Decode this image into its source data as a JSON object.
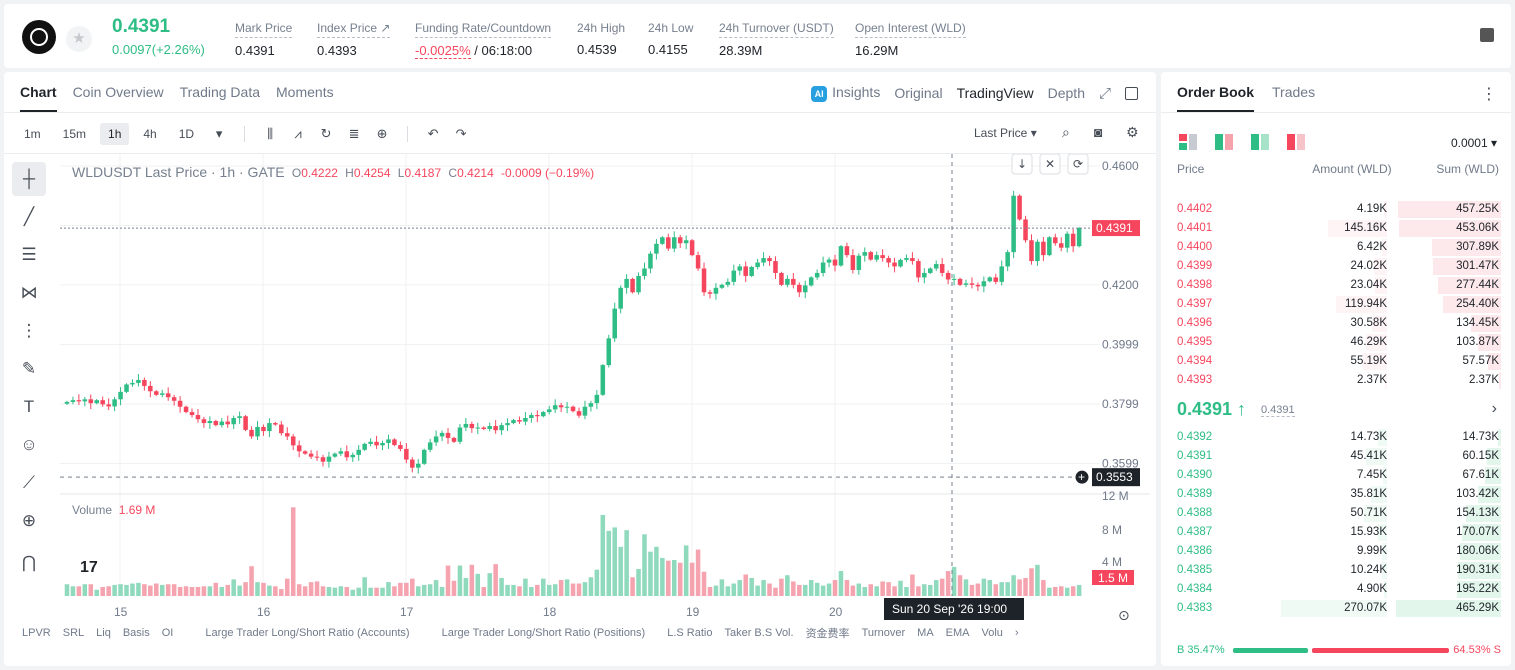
{
  "ticker": {
    "last_price": "0.4391",
    "change": "0.0097(+2.26%)",
    "stats": [
      {
        "label": "Mark Price",
        "value": "0.4391"
      },
      {
        "label": "Index Price ↗",
        "value": "0.4393"
      },
      {
        "label": "Funding Rate/Countdown",
        "value_red": "-0.0025%",
        "value": " / 06:18:00"
      },
      {
        "label": "24h High",
        "value": "0.4539"
      },
      {
        "label": "24h Low",
        "value": "0.4155"
      },
      {
        "label": "24h Turnover (USDT)",
        "value": "28.39M"
      },
      {
        "label": "Open Interest (WLD)",
        "value": "16.29M"
      }
    ]
  },
  "chart_tabs": [
    "Chart",
    "Coin Overview",
    "Trading Data",
    "Moments"
  ],
  "view_tabs": {
    "insights": "Insights",
    "ai_badge": "AI",
    "original": "Original",
    "tradingview": "TradingView",
    "depth": "Depth"
  },
  "intervals": [
    "1m",
    "15m",
    "1h",
    "4h",
    "1D"
  ],
  "active_interval": "1h",
  "price_type": "Last Price ▾",
  "legend": {
    "symbol": "WLDUSDT Last Price · 1h · GATE",
    "o": "O",
    "o_val": "0.4222",
    "h": "H",
    "h_val": "0.4254",
    "l": "L",
    "l_val": "0.4187",
    "c": "C",
    "c_val": "0.4214",
    "chg": "-0.0009 (−0.19%)"
  },
  "volume_legend": {
    "label": "Volume",
    "value": "1.69 M"
  },
  "bottom_indicators": [
    "LPVR",
    "SRL",
    "Liq",
    "Basis",
    "OI",
    "Large Trader Long/Short Ratio (Accounts)",
    "Large Trader Long/Short Ratio (Positions)",
    "L.S Ratio",
    "Taker B.S Vol.",
    "资金费率",
    "Turnover",
    "MA",
    "EMA",
    "Volu"
  ],
  "chart_data": {
    "type": "candlestick",
    "y_ticks": [
      "0.4600",
      "0.4391",
      "0.4200",
      "0.3999",
      "0.3799",
      "0.3599",
      "0.3553"
    ],
    "x_ticks": [
      "15",
      "16",
      "17",
      "18",
      "19",
      "20"
    ],
    "crosshair_label": "Sun 20 Sep '26   19:00",
    "volume_ticks": [
      "12 M",
      "8 M",
      "4 M",
      "1.5 M"
    ],
    "last_price_label": "0.4391",
    "crosshair_price_label": "0.3553",
    "close_series": [
      0.3806,
      0.3812,
      0.3808,
      0.3815,
      0.3802,
      0.3812,
      0.3798,
      0.3791,
      0.3815,
      0.384,
      0.3865,
      0.387,
      0.388,
      0.386,
      0.3842,
      0.383,
      0.3835,
      0.3822,
      0.381,
      0.379,
      0.3772,
      0.3762,
      0.3748,
      0.3735,
      0.3742,
      0.3728,
      0.374,
      0.3731,
      0.3752,
      0.3758,
      0.3712,
      0.369,
      0.3722,
      0.3708,
      0.3735,
      0.373,
      0.3701,
      0.369,
      0.366,
      0.364,
      0.3632,
      0.3622,
      0.362,
      0.3605,
      0.3622,
      0.3632,
      0.364,
      0.362,
      0.3628,
      0.3645,
      0.3665,
      0.3672,
      0.366,
      0.3668,
      0.368,
      0.3661,
      0.3648,
      0.3612,
      0.3585,
      0.3598,
      0.3645,
      0.367,
      0.369,
      0.3702,
      0.3685,
      0.3672,
      0.372,
      0.3732,
      0.3718,
      0.372,
      0.3715,
      0.3725,
      0.3711,
      0.3728,
      0.3735,
      0.3745,
      0.374,
      0.3752,
      0.3762,
      0.3758,
      0.3772,
      0.3781,
      0.3795,
      0.3788,
      0.379,
      0.3775,
      0.376,
      0.379,
      0.3802,
      0.383,
      0.393,
      0.402,
      0.412,
      0.419,
      0.422,
      0.4175,
      0.423,
      0.4255,
      0.4305,
      0.4338,
      0.436,
      0.4322,
      0.436,
      0.434,
      0.435,
      0.43,
      0.4255,
      0.4175,
      0.417,
      0.419,
      0.42,
      0.421,
      0.4248,
      0.4262,
      0.423,
      0.426,
      0.4275,
      0.429,
      0.428,
      0.424,
      0.42,
      0.422,
      0.42,
      0.4175,
      0.4198,
      0.4225,
      0.424,
      0.4275,
      0.4285,
      0.4265,
      0.433,
      0.43,
      0.425,
      0.4298,
      0.431,
      0.4285,
      0.43,
      0.429,
      0.4275,
      0.4262,
      0.4284,
      0.429,
      0.428,
      0.4225,
      0.424,
      0.4255,
      0.427,
      0.424,
      0.4218,
      0.422,
      0.42,
      0.4205,
      0.42,
      0.4195,
      0.4212,
      0.4225,
      0.421,
      0.4262,
      0.431,
      0.45,
      0.442,
      0.435,
      0.428,
      0.4345,
      0.43,
      0.436,
      0.434,
      0.4325,
      0.4372,
      0.433,
      0.4391
    ],
    "volume_series": [
      1.7,
      1.4,
      1.4,
      1.7,
      1.7,
      0.9,
      1.3,
      1.4,
      1.6,
      1.7,
      1.6,
      1.8,
      1.9,
      1.7,
      1.5,
      1.8,
      1.6,
      1.7,
      1.7,
      1.3,
      1.4,
      1.3,
      1.3,
      1.4,
      1.4,
      1.9,
      1.3,
      1.6,
      2.4,
      1.5,
      2.0,
      4.3,
      2.0,
      1.9,
      1.5,
      1.4,
      1.0,
      2.5,
      12.8,
      1.7,
      1.4,
      2.0,
      2.1,
      1.4,
      1.3,
      1.2,
      1.4,
      1.3,
      0.9,
      1.2,
      2.7,
      1.2,
      1.2,
      1.2,
      2.0,
      1.4,
      1.9,
      1.9,
      2.5,
      1.4,
      1.6,
      1.7,
      2.3,
      1.3,
      4.4,
      2.2,
      4.4,
      2.6,
      4.5,
      3.2,
      1.3,
      3.3,
      4.6,
      2.6,
      1.6,
      1.6,
      1.4,
      2.5,
      1.3,
      1.6,
      2.5,
      1.6,
      1.7,
      2.3,
      2.4,
      1.8,
      1.8,
      2.0,
      2.7,
      3.8,
      11.7,
      9.4,
      9.9,
      7.1,
      9.5,
      2.7,
      3.9,
      8.9,
      6.4,
      7.1,
      5.5,
      5.1,
      5.2,
      4.8,
      7.3,
      4.8,
      6.7,
      3.5,
      1.3,
      1.5,
      2.4,
      1.4,
      1.8,
      2.3,
      3.1,
      2.6,
      1.5,
      2.3,
      1.8,
      1.2,
      2.5,
      3.0,
      2.1,
      1.6,
      1.6,
      2.3,
      1.9,
      1.5,
      1.8,
      2.3,
      3.6,
      2.3,
      1.5,
      1.8,
      1.3,
      1.7,
      1.4,
      2.1,
      2.0,
      1.4,
      2.2,
      1.3,
      3.1,
      1.4,
      1.7,
      1.6,
      2.3,
      2.5,
      3.6,
      4.2,
      3.0,
      2.4,
      1.6,
      1.8,
      2.5,
      2.3,
      1.7,
      2.0,
      2.0,
      3.0,
      2.4,
      2.6,
      4.0,
      4.5,
      2.3,
      1.2,
      1.3,
      1.4,
      1.2,
      1.4,
      1.6,
      1.3,
      2.3,
      1.4
    ]
  },
  "orderbook": {
    "tabs": [
      "Order Book",
      "Trades"
    ],
    "tick": "0.0001 ▾",
    "headers": [
      "Price",
      "Amount (WLD)",
      "Sum (WLD)"
    ],
    "asks": [
      {
        "p": "0.4402",
        "a": "4.19K",
        "s": "457.25K",
        "depth": 0.98,
        "amt": 0.03
      },
      {
        "p": "0.4401",
        "a": "145.16K",
        "s": "453.06K",
        "depth": 0.97,
        "amt": 0.54
      },
      {
        "p": "0.4400",
        "a": "6.42K",
        "s": "307.89K",
        "depth": 0.66,
        "amt": 0.05
      },
      {
        "p": "0.4399",
        "a": "24.02K",
        "s": "301.47K",
        "depth": 0.65,
        "amt": 0.12
      },
      {
        "p": "0.4398",
        "a": "23.04K",
        "s": "277.44K",
        "depth": 0.6,
        "amt": 0.11
      },
      {
        "p": "0.4397",
        "a": "119.94K",
        "s": "254.40K",
        "depth": 0.55,
        "amt": 0.46
      },
      {
        "p": "0.4396",
        "a": "30.58K",
        "s": "134.45K",
        "depth": 0.29,
        "amt": 0.14
      },
      {
        "p": "0.4395",
        "a": "46.29K",
        "s": "103.87K",
        "depth": 0.22,
        "amt": 0.19
      },
      {
        "p": "0.4394",
        "a": "55.19K",
        "s": "57.57K",
        "depth": 0.12,
        "amt": 0.22
      },
      {
        "p": "0.4393",
        "a": "2.37K",
        "s": "2.37K",
        "depth": 0.02,
        "amt": 0.02
      }
    ],
    "mid": "0.4391 ↑",
    "mid_mark": "0.4391",
    "bids": [
      {
        "p": "0.4392",
        "a": "14.73K",
        "s": "14.73K",
        "depth": 0.03,
        "amt": 0.08
      },
      {
        "p": "0.4391",
        "a": "45.41K",
        "s": "60.15K",
        "depth": 0.13,
        "amt": 0.19
      },
      {
        "p": "0.4390",
        "a": "7.45K",
        "s": "67.61K",
        "depth": 0.15,
        "amt": 0.04
      },
      {
        "p": "0.4389",
        "a": "35.81K",
        "s": "103.42K",
        "depth": 0.22,
        "amt": 0.15
      },
      {
        "p": "0.4388",
        "a": "50.71K",
        "s": "154.13K",
        "depth": 0.33,
        "amt": 0.21
      },
      {
        "p": "0.4387",
        "a": "15.93K",
        "s": "170.07K",
        "depth": 0.37,
        "amt": 0.08
      },
      {
        "p": "0.4386",
        "a": "9.99K",
        "s": "180.06K",
        "depth": 0.39,
        "amt": 0.05
      },
      {
        "p": "0.4385",
        "a": "10.24K",
        "s": "190.31K",
        "depth": 0.41,
        "amt": 0.05
      },
      {
        "p": "0.4384",
        "a": "4.90K",
        "s": "195.22K",
        "depth": 0.42,
        "amt": 0.03
      },
      {
        "p": "0.4383",
        "a": "270.07K",
        "s": "465.29K",
        "depth": 1.0,
        "amt": 0.96
      }
    ],
    "ratio_b": "B 35.47%",
    "ratio_s": "64.53% S",
    "ratio_b_value": 0.3547
  },
  "colors": {
    "up": "#2ebd85",
    "down": "#f6465d",
    "text": "#1e2329",
    "muted": "#707a8a"
  }
}
